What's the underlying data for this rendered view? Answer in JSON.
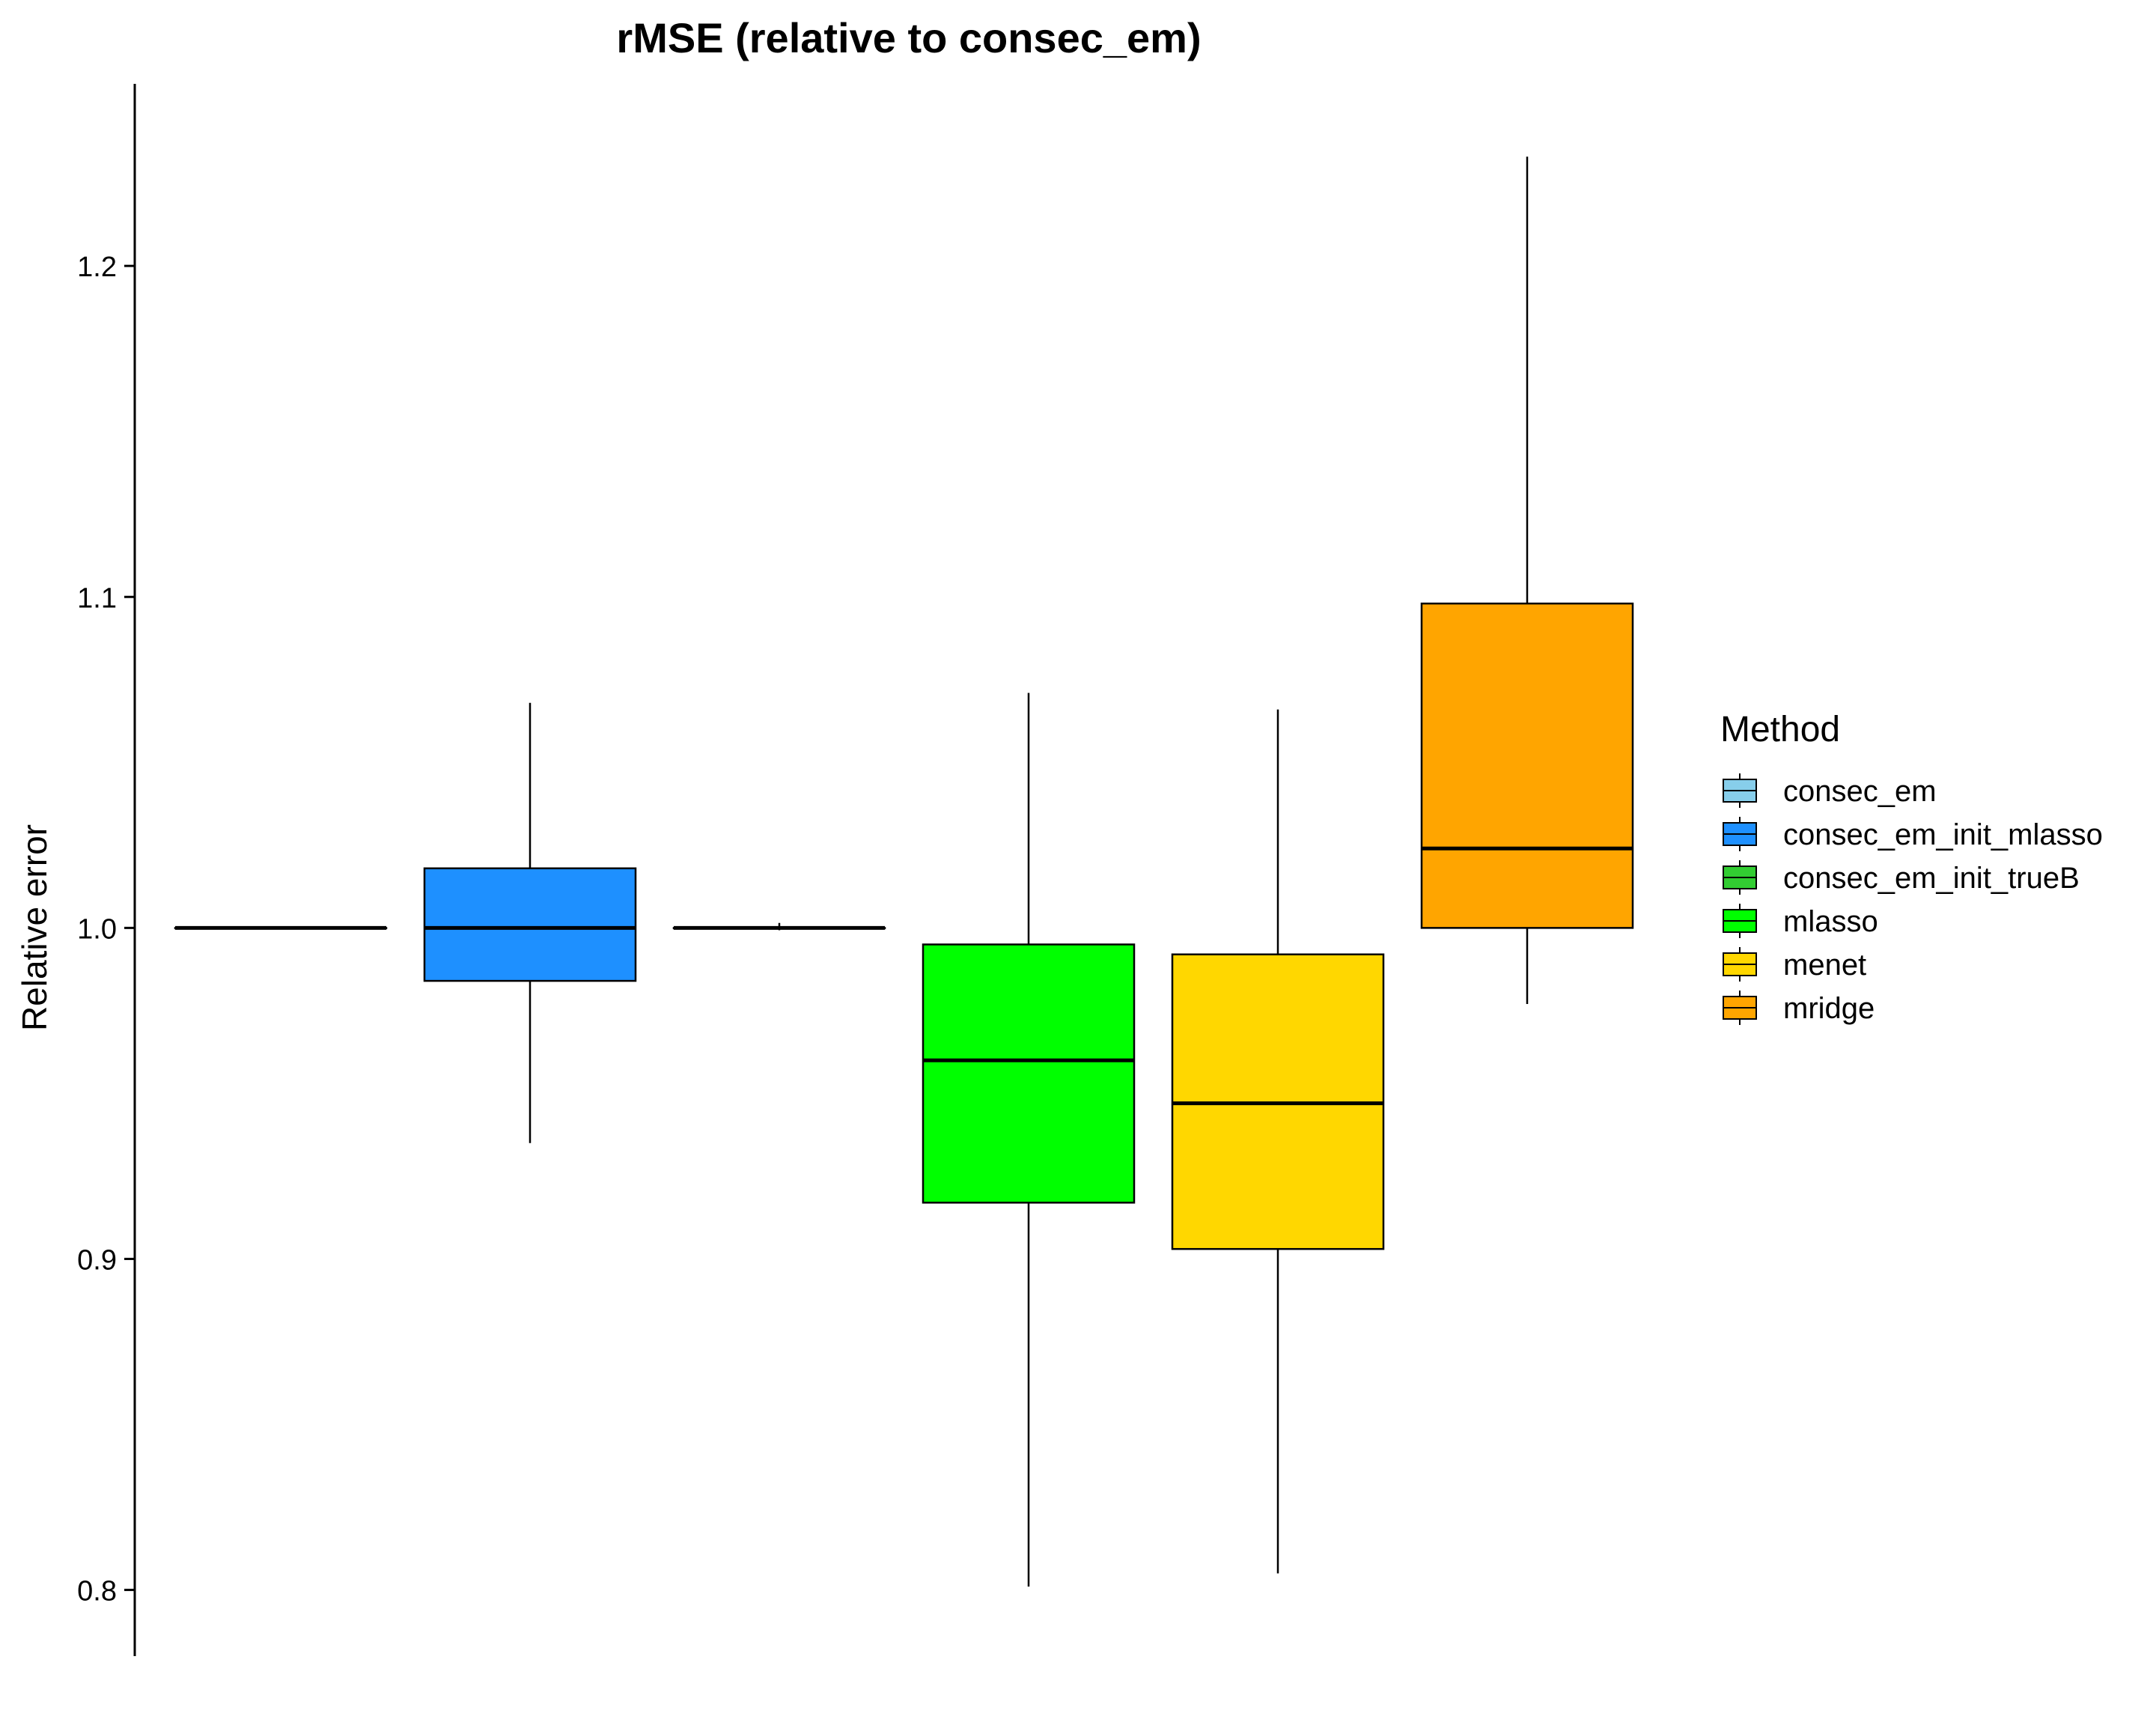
{
  "chart_data": {
    "type": "box",
    "title": "rMSE (relative to consec_em)",
    "xlabel": "",
    "ylabel": "Relative error",
    "ylim": [
      0.78,
      1.255
    ],
    "yticks": [
      0.8,
      0.9,
      1.0,
      1.1,
      1.2
    ],
    "ytick_labels": [
      "0.8",
      "0.9",
      "1.0",
      "1.1",
      "1.2"
    ],
    "grid": false,
    "legend": {
      "title": "Method",
      "position": "right"
    },
    "series": [
      {
        "name": "consec_em",
        "color": "#87CEEB",
        "min": 1.0,
        "q1": 1.0,
        "median": 1.0,
        "q3": 1.0,
        "max": 1.0
      },
      {
        "name": "consec_em_init_mlasso",
        "color": "#1E90FF",
        "min": 0.935,
        "q1": 0.984,
        "median": 1.0,
        "q3": 1.018,
        "max": 1.068
      },
      {
        "name": "consec_em_init_trueB",
        "color": "#32CD32",
        "min": 0.9993,
        "q1": 1.0,
        "median": 1.0,
        "q3": 1.0,
        "max": 1.0015
      },
      {
        "name": "mlasso",
        "color": "#00FF00",
        "min": 0.801,
        "q1": 0.917,
        "median": 0.96,
        "q3": 0.995,
        "max": 1.071
      },
      {
        "name": "menet",
        "color": "#FFD700",
        "min": 0.805,
        "q1": 0.903,
        "median": 0.947,
        "q3": 0.992,
        "max": 1.066
      },
      {
        "name": "mridge",
        "color": "#FFA500",
        "min": 0.977,
        "q1": 1.0,
        "median": 1.024,
        "q3": 1.098,
        "max": 1.233
      }
    ]
  }
}
